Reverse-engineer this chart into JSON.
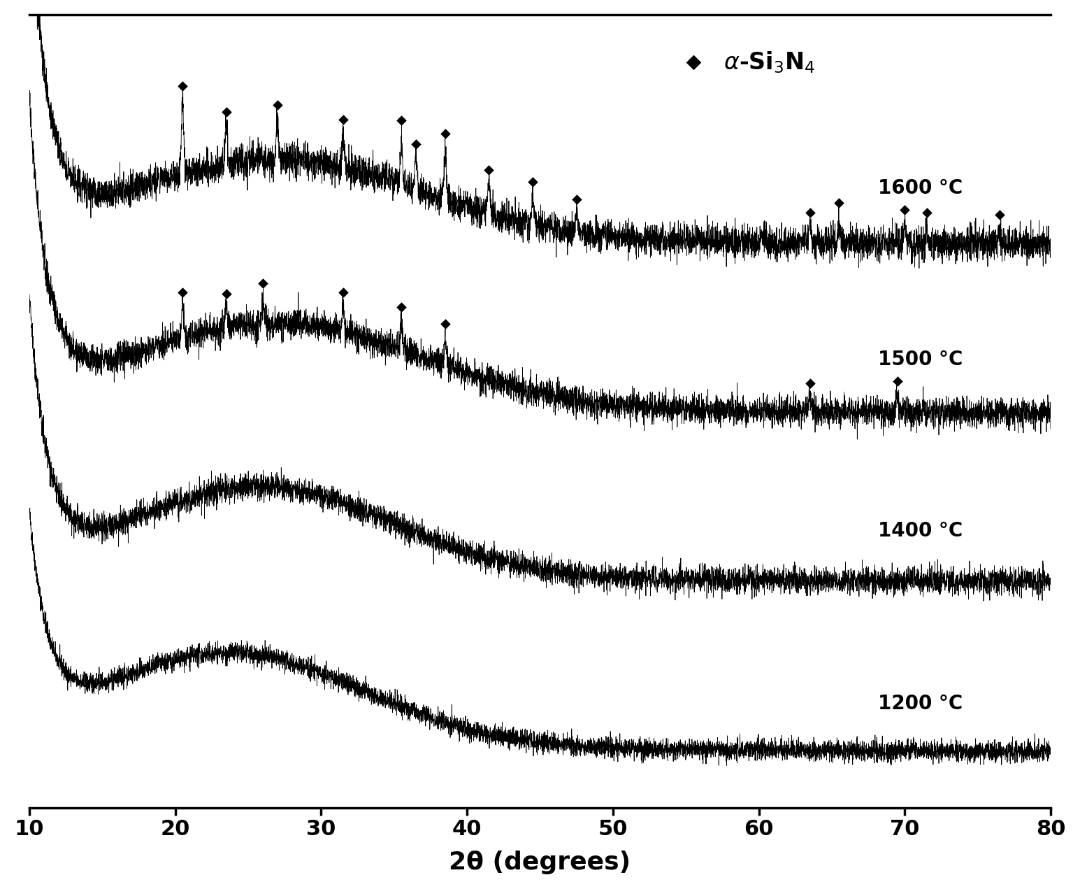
{
  "xlabel": "2θ (degrees)",
  "xmin": 10,
  "xmax": 80,
  "temperatures": [
    "1200 °C",
    "1400 °C",
    "1500 °C",
    "1600 °C"
  ],
  "line_color": "#000000",
  "background_color": "#ffffff",
  "diamond_color": "#000000",
  "markers_1600": [
    20.5,
    23.5,
    27.0,
    31.5,
    35.5,
    36.5,
    38.5,
    41.5,
    44.5,
    47.5,
    63.5,
    65.5,
    70.0,
    71.5,
    76.5
  ],
  "markers_1500": [
    20.5,
    23.5,
    26.0,
    31.5,
    35.5,
    38.5,
    63.5,
    69.5
  ]
}
